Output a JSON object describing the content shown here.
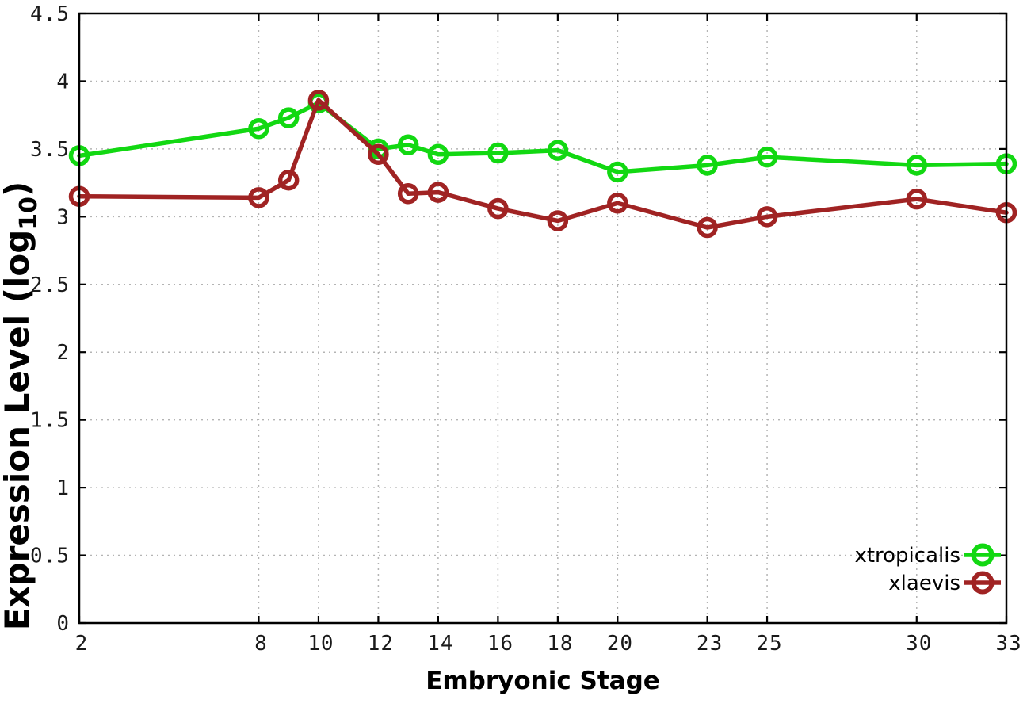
{
  "chart_data": {
    "type": "line",
    "title": "",
    "xlabel": "Embryonic Stage",
    "ylabel": "Expression Level (log10)",
    "ylabel_parts": {
      "prefix": "Expression Level (log",
      "sub": "10",
      "suffix": ")"
    },
    "xlim": [
      2,
      33
    ],
    "ylim": [
      0,
      4.5
    ],
    "grid": true,
    "grid_style": "dotted",
    "legend_position": "bottom-right",
    "x": [
      2,
      8,
      9,
      10,
      12,
      13,
      14,
      16,
      18,
      20,
      23,
      25,
      30,
      33
    ],
    "xticks": [
      2,
      8,
      10,
      12,
      14,
      16,
      18,
      20,
      23,
      25,
      30,
      33
    ],
    "xtick_labels": [
      "2",
      "8",
      "10",
      "12",
      "14",
      "16",
      "18",
      "20",
      "23",
      "25",
      "30",
      "33"
    ],
    "yticks": [
      0,
      0.5,
      1,
      1.5,
      2,
      2.5,
      3,
      3.5,
      4,
      4.5
    ],
    "ytick_labels": [
      "0",
      "0.5",
      "1",
      "1.5",
      "2",
      "2.5",
      "3",
      "3.5",
      "4",
      "4.5"
    ],
    "series": [
      {
        "name": "xtropicalis",
        "color": "#12d812",
        "marker": "open-circle",
        "values": [
          3.45,
          3.65,
          3.73,
          3.84,
          3.5,
          3.53,
          3.46,
          3.47,
          3.49,
          3.33,
          3.38,
          3.44,
          3.38,
          3.39
        ]
      },
      {
        "name": "xlaevis",
        "color": "#a02323",
        "marker": "open-circle",
        "values": [
          3.15,
          3.14,
          3.27,
          3.86,
          3.46,
          3.17,
          3.18,
          3.06,
          2.97,
          3.1,
          2.92,
          3.0,
          3.13,
          3.03
        ]
      }
    ]
  },
  "colors": {
    "background": "#ffffff",
    "axis_border": "#000000",
    "grid_line": "#b4b4b4",
    "tick_label": "#1a1a1a"
  }
}
